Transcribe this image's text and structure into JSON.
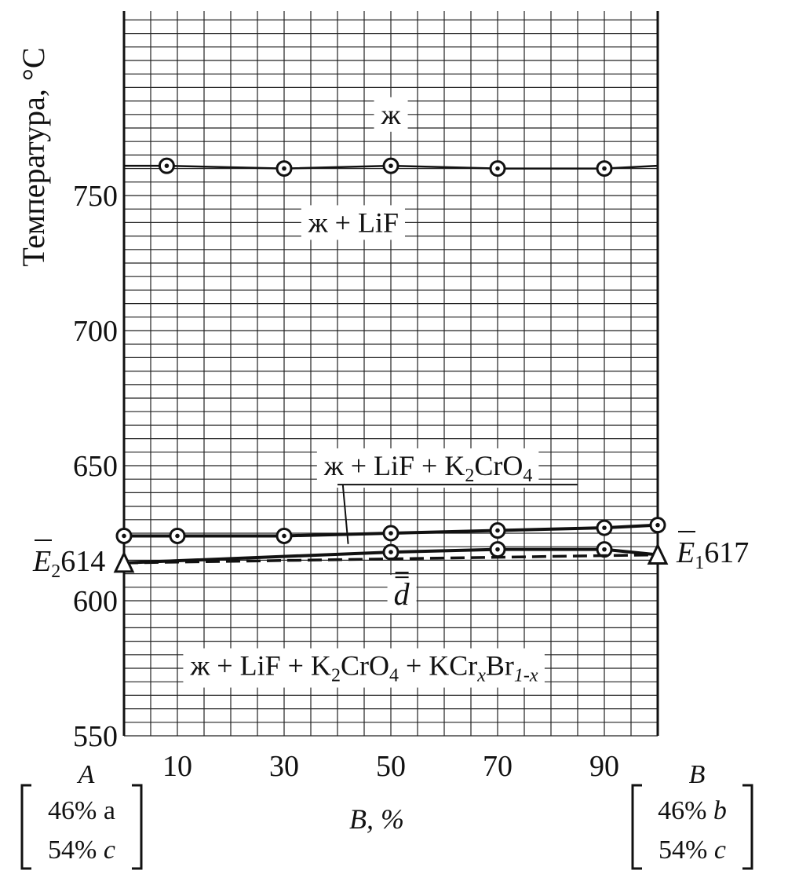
{
  "chart_data": {
    "type": "line",
    "ylabel": "Температура, °C",
    "xlabel": "B, %",
    "xlim": [
      0,
      100
    ],
    "ylim": [
      550,
      790
    ],
    "x_ticks": [
      10,
      30,
      50,
      70,
      90
    ],
    "x_tick_labels": [
      "10",
      "30",
      "50",
      "70",
      "90"
    ],
    "y_ticks": [
      550,
      600,
      650,
      700,
      750
    ],
    "y_tick_labels": [
      "550",
      "600",
      "650",
      "700",
      "750"
    ],
    "grid": true,
    "series": [
      {
        "style": "solid-thin",
        "markers": "dotted-circle",
        "x": [
          0,
          8,
          30,
          50,
          70,
          90,
          100
        ],
        "y": [
          761,
          761,
          760,
          761,
          760,
          760,
          761
        ],
        "marker_x": [
          8,
          30,
          50,
          70,
          90
        ],
        "marker_y": [
          761,
          760,
          761,
          760,
          760
        ]
      },
      {
        "style": "solid-thick",
        "markers": "dotted-circle",
        "x": [
          0,
          10,
          30,
          50,
          70,
          90,
          100
        ],
        "y": [
          624,
          624,
          624,
          625,
          626,
          627,
          628
        ],
        "marker_x": [
          0,
          10,
          30,
          50,
          70,
          90,
          100
        ],
        "marker_y": [
          624,
          624,
          624,
          625,
          626,
          627,
          628
        ]
      },
      {
        "style": "solid-thick",
        "markers": "dotted-circle",
        "x": [
          0,
          50,
          70,
          90,
          100
        ],
        "y": [
          614,
          618,
          619,
          619,
          617
        ],
        "marker_x": [
          50,
          70,
          90
        ],
        "marker_y": [
          618,
          619,
          619
        ]
      },
      {
        "style": "dashed",
        "markers": "none",
        "x": [
          0,
          100
        ],
        "y": [
          614,
          617
        ]
      }
    ],
    "eutectics": [
      {
        "label_main": "E",
        "label_sub": "2",
        "value": "614",
        "x": 0,
        "y": 614,
        "side": "left"
      },
      {
        "label_main": "E",
        "label_sub": "1",
        "value": "617",
        "x": 100,
        "y": 617,
        "side": "right"
      }
    ],
    "regions": [
      {
        "id": "liquid",
        "text": "ж",
        "x": 50,
        "y": 780
      },
      {
        "id": "liquid-lif",
        "text": "ж + LiF",
        "x": 43,
        "y": 740
      },
      {
        "id": "liquid-lif-k2cro4",
        "parts": [
          "ж + LiF + K",
          "2",
          "CrO",
          "4"
        ],
        "x": 57,
        "y": 650
      },
      {
        "id": "d-point",
        "text": "d",
        "x": 52,
        "y": 602
      },
      {
        "id": "four-phase",
        "parts": [
          "ж + LiF + K",
          "2",
          "CrO",
          "4",
          " + KCr",
          "x",
          "Br",
          "1-x"
        ],
        "x": 45,
        "y": 576
      }
    ],
    "endpoints": [
      {
        "id": "left",
        "letter": "A",
        "line1": "46% a",
        "line2_num": "54% ",
        "line2_var": "c"
      },
      {
        "id": "right",
        "letter": "B",
        "line1_num": "46% ",
        "line1_var": "b",
        "line2_num": "54% ",
        "line2_var": "c"
      }
    ]
  }
}
